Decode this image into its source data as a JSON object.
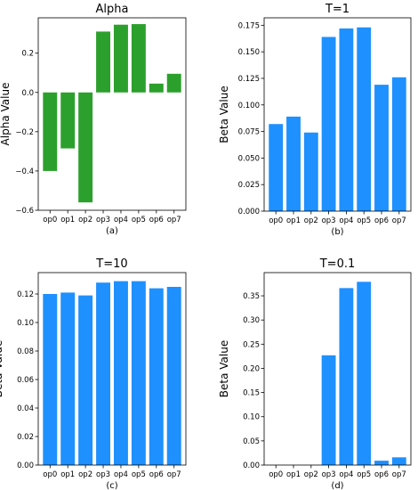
{
  "figure": {
    "panels": [
      "(a)",
      "(b)",
      "(c)",
      "(d)"
    ]
  },
  "chart_data": [
    {
      "type": "bar",
      "title": "Alpha",
      "ylabel": "Alpha Value",
      "xlabel": "",
      "caption": "(a)",
      "color": "#2ca02c",
      "categories": [
        "op0",
        "op1",
        "op2",
        "op3",
        "op4",
        "op5",
        "op6",
        "op7"
      ],
      "values": [
        -0.4,
        -0.285,
        -0.56,
        0.31,
        0.345,
        0.348,
        0.045,
        0.095
      ],
      "ylim": [
        -0.6,
        0.38
      ],
      "yticks": [
        -0.6,
        -0.4,
        -0.2,
        0.0,
        0.2
      ],
      "ytick_labels": [
        "−0.6",
        "−0.4",
        "−0.2",
        "0.0",
        "0.2"
      ],
      "grid": false
    },
    {
      "type": "bar",
      "title": "T=1",
      "ylabel": "Beta Value",
      "xlabel": "",
      "caption": "(b)",
      "color": "#1e90ff",
      "categories": [
        "op0",
        "op1",
        "op2",
        "op3",
        "op4",
        "op5",
        "op6",
        "op7"
      ],
      "values": [
        0.082,
        0.089,
        0.074,
        0.164,
        0.172,
        0.173,
        0.119,
        0.126
      ],
      "ylim": [
        0,
        0.182
      ],
      "yticks": [
        0.0,
        0.025,
        0.05,
        0.075,
        0.1,
        0.125,
        0.15,
        0.175
      ],
      "ytick_labels": [
        "0.000",
        "0.025",
        "0.050",
        "0.075",
        "0.100",
        "0.125",
        "0.150",
        "0.175"
      ],
      "grid": false
    },
    {
      "type": "bar",
      "title": "T=10",
      "ylabel": "Beta Value",
      "xlabel": "",
      "caption": "(c)",
      "color": "#1e90ff",
      "categories": [
        "op0",
        "op1",
        "op2",
        "op3",
        "op4",
        "op5",
        "op6",
        "op7"
      ],
      "values": [
        0.12,
        0.121,
        0.119,
        0.128,
        0.129,
        0.129,
        0.124,
        0.125
      ],
      "ylim": [
        0,
        0.135
      ],
      "yticks": [
        0.0,
        0.02,
        0.04,
        0.06,
        0.08,
        0.1,
        0.12
      ],
      "ytick_labels": [
        "0.00",
        "0.02",
        "0.04",
        "0.06",
        "0.08",
        "0.10",
        "0.12"
      ],
      "grid": false
    },
    {
      "type": "bar",
      "title": "T=0.1",
      "ylabel": "Beta Value",
      "xlabel": "",
      "caption": "(d)",
      "color": "#1e90ff",
      "categories": [
        "op0",
        "op1",
        "op2",
        "op3",
        "op4",
        "op5",
        "op6",
        "op7"
      ],
      "values": [
        0.0,
        0.0,
        0.0,
        0.227,
        0.366,
        0.379,
        0.009,
        0.016
      ],
      "ylim": [
        0,
        0.398
      ],
      "yticks": [
        0.0,
        0.05,
        0.1,
        0.15,
        0.2,
        0.25,
        0.3,
        0.35
      ],
      "ytick_labels": [
        "0.00",
        "0.05",
        "0.10",
        "0.15",
        "0.20",
        "0.25",
        "0.30",
        "0.35"
      ],
      "grid": false
    }
  ]
}
